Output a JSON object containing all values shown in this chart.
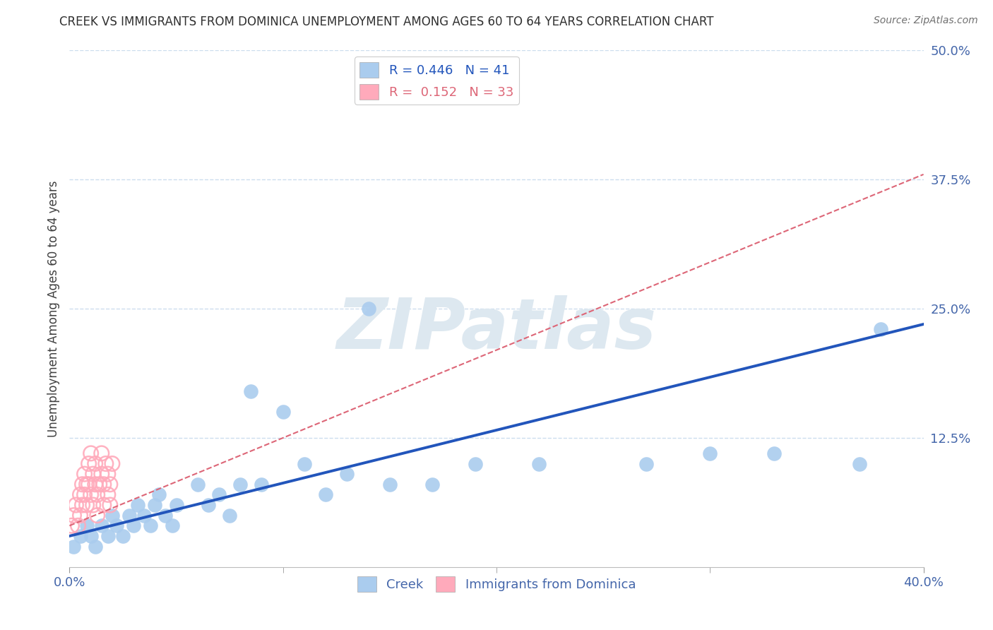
{
  "title": "CREEK VS IMMIGRANTS FROM DOMINICA UNEMPLOYMENT AMONG AGES 60 TO 64 YEARS CORRELATION CHART",
  "source_text": "Source: ZipAtlas.com",
  "ylabel": "Unemployment Among Ages 60 to 64 years",
  "xlabel_creek": "Creek",
  "xlabel_dominica": "Immigrants from Dominica",
  "creek_R": 0.446,
  "creek_N": 41,
  "dominica_R": 0.152,
  "dominica_N": 33,
  "xlim": [
    0.0,
    0.4
  ],
  "ylim": [
    0.0,
    0.5
  ],
  "background_color": "#ffffff",
  "creek_color": "#aaccee",
  "creek_line_color": "#2255bb",
  "dominica_color": "#ffaabb",
  "dominica_line_color": "#dd6677",
  "grid_color": "#ccddee",
  "title_color": "#303030",
  "axis_color": "#4466aa",
  "watermark_color": "#dde8f0",
  "creek_scatter_x": [
    0.002,
    0.005,
    0.008,
    0.01,
    0.012,
    0.015,
    0.018,
    0.02,
    0.022,
    0.025,
    0.028,
    0.03,
    0.032,
    0.035,
    0.038,
    0.04,
    0.042,
    0.045,
    0.048,
    0.05,
    0.06,
    0.065,
    0.07,
    0.075,
    0.08,
    0.085,
    0.09,
    0.1,
    0.11,
    0.12,
    0.13,
    0.14,
    0.15,
    0.17,
    0.19,
    0.22,
    0.27,
    0.3,
    0.33,
    0.37,
    0.38
  ],
  "creek_scatter_y": [
    0.02,
    0.03,
    0.04,
    0.03,
    0.02,
    0.04,
    0.03,
    0.05,
    0.04,
    0.03,
    0.05,
    0.04,
    0.06,
    0.05,
    0.04,
    0.06,
    0.07,
    0.05,
    0.04,
    0.06,
    0.08,
    0.06,
    0.07,
    0.05,
    0.08,
    0.17,
    0.08,
    0.15,
    0.1,
    0.07,
    0.09,
    0.25,
    0.08,
    0.08,
    0.1,
    0.1,
    0.1,
    0.11,
    0.11,
    0.1,
    0.23
  ],
  "dominica_scatter_x": [
    0.001,
    0.002,
    0.003,
    0.004,
    0.005,
    0.005,
    0.006,
    0.006,
    0.007,
    0.007,
    0.008,
    0.008,
    0.009,
    0.009,
    0.01,
    0.01,
    0.011,
    0.011,
    0.012,
    0.012,
    0.013,
    0.013,
    0.014,
    0.015,
    0.015,
    0.016,
    0.016,
    0.017,
    0.018,
    0.018,
    0.019,
    0.019,
    0.02
  ],
  "dominica_scatter_y": [
    0.04,
    0.05,
    0.06,
    0.04,
    0.07,
    0.05,
    0.08,
    0.06,
    0.09,
    0.07,
    0.08,
    0.06,
    0.1,
    0.08,
    0.11,
    0.07,
    0.09,
    0.06,
    0.1,
    0.08,
    0.07,
    0.05,
    0.08,
    0.09,
    0.11,
    0.08,
    0.06,
    0.1,
    0.09,
    0.07,
    0.08,
    0.06,
    0.1
  ],
  "creek_line_x0": 0.0,
  "creek_line_y0": 0.03,
  "creek_line_x1": 0.4,
  "creek_line_y1": 0.235,
  "dom_line_x0": 0.0,
  "dom_line_y0": 0.04,
  "dom_line_x1": 0.4,
  "dom_line_y1": 0.38
}
